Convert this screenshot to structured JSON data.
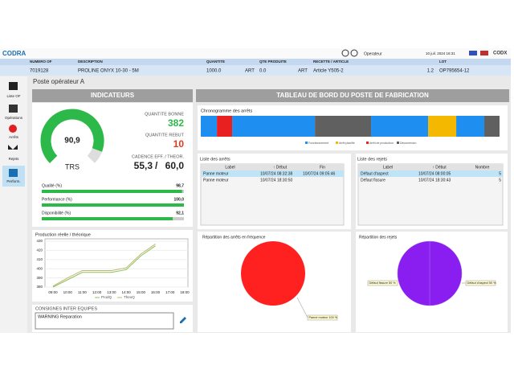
{
  "topbar": {
    "logo": "CODRA",
    "user": "Operateur",
    "datetime": "10 juil. 2024 16:31",
    "brand": "CODX"
  },
  "info": [
    {
      "label": "NUMERO OF",
      "value": "7019128"
    },
    {
      "label": "DESCRIPTION",
      "value": "PROLINE ONYX 10-30 - 5M"
    },
    {
      "label": "QUANTITE",
      "value": "1000.0",
      "unit": "ART"
    },
    {
      "label": "QTE PRODUITE",
      "value": "0.0",
      "unit": "ART"
    },
    {
      "label": "RECETTE / ARTICLE",
      "value": "Article Y505-2",
      "extra": "1.2"
    },
    {
      "label": "LOT",
      "value": "OP795654-12"
    }
  ],
  "nav": [
    "Liste OF",
    "Opérations",
    "Arrêts",
    "Rejets",
    "Perform."
  ],
  "page_title": "Poste opérateur A",
  "indicators": {
    "title": "INDICATEURS",
    "trs": {
      "label": "TRS",
      "value": 90.9,
      "value_label": "90,9",
      "max": 100,
      "color": "#2db84a"
    },
    "good": {
      "label": "QUANTITE BONNE",
      "value": 382,
      "color": "#2db84a"
    },
    "scrap": {
      "label": "QUANTITE REBUT",
      "value": 10,
      "color": "#e03a1e"
    },
    "rate": {
      "label": "CADENCE EFF. / THEOR.",
      "effective": 55.3,
      "effective_label": "55,3",
      "separator": "/",
      "theoretical": 60.0,
      "theoretical_label": "60,0"
    },
    "bars_xlim": [
      0,
      100
    ],
    "bars": [
      {
        "label": "Qualité (%)",
        "value": 98.7,
        "value_label": "98,7"
      },
      {
        "label": "Performance (%)",
        "value": 100.0,
        "value_label": "100,0"
      },
      {
        "label": "Disponibilité (%)",
        "value": 92.1,
        "value_label": "92,1"
      }
    ]
  },
  "chart_data": {
    "type": "line",
    "title": "Production réelle / théorique",
    "categories": [
      "09:00",
      "10:00",
      "11:00",
      "12:00",
      "13:00",
      "14:00",
      "15:00",
      "16:00",
      "17:00",
      "18:00"
    ],
    "series": [
      {
        "name": "ProdQ",
        "color": "#8fbf5a",
        "values": [
          380,
          388,
          396,
          396,
          396,
          399,
          414,
          425,
          null,
          null
        ]
      },
      {
        "name": "TheoQ",
        "color": "#bdb76b",
        "values": [
          381,
          390,
          398,
          398,
          398,
          401,
          416,
          427,
          null,
          null
        ]
      }
    ],
    "ylim": [
      380,
      430
    ],
    "yticks": [
      380,
      390,
      400,
      410,
      420,
      430
    ],
    "grid": true
  },
  "consignes": {
    "title": "CONSIGNES INTER EQUIPES",
    "text": "WARNING Reparation"
  },
  "dashboard": {
    "title": "TABLEAU DE BORD DU POSTE DE FABRICATION",
    "chrono": {
      "title": "Chronogramme des arrêts",
      "xlim": [
        0,
        100
      ],
      "legend": [
        {
          "name": "Fonctionnement",
          "color": "#1e8ff0"
        },
        {
          "name": "Arrêt planifié",
          "color": "#f5b800"
        },
        {
          "name": "Arrêt de production",
          "color": "#e82020"
        },
        {
          "name": "Déconnexion",
          "color": "#606060"
        }
      ],
      "segments": [
        {
          "state": 0,
          "start": 0,
          "end": 5.4
        },
        {
          "state": 2,
          "start": 5.4,
          "end": 10.5
        },
        {
          "state": 0,
          "start": 10.5,
          "end": 38.2
        },
        {
          "state": 3,
          "start": 38.2,
          "end": 57
        },
        {
          "state": 0,
          "start": 57,
          "end": 76.1
        },
        {
          "state": 1,
          "start": 76.1,
          "end": 85.5
        },
        {
          "state": 0,
          "start": 85.5,
          "end": 94.9
        },
        {
          "state": 3,
          "start": 94.9,
          "end": 100
        }
      ]
    },
    "stops": {
      "title": "Liste des arrêts",
      "columns": [
        "Label",
        "↑ Début",
        "Fin"
      ],
      "rows": [
        [
          "Panne moteur",
          "10/07/24 08:32:38",
          "10/07/24 09:05:46"
        ],
        [
          "Panne moteur",
          "10/07/24 18:30:50"
        ]
      ]
    },
    "rejects": {
      "title": "Liste des rejets",
      "columns": [
        "Label",
        "↑ Début",
        "Nombre"
      ],
      "rows": [
        [
          "Défaut d'aspect",
          "10/07/24 08:00:05",
          "5"
        ],
        [
          "Défaut fissure",
          "10/07/24 18:30:43",
          "5"
        ]
      ]
    },
    "stops_pie": {
      "title": "Répartition des arrêts en fréquence",
      "slices": [
        {
          "value": 100,
          "value_label": "Panne moteur 100 %",
          "color": "#ff2020"
        }
      ]
    },
    "rejects_pie": {
      "title": "Répartition des rejets",
      "slices": [
        {
          "value": 50,
          "value_label": "Défaut d'aspect 50 %",
          "color": "#8a1ef0"
        },
        {
          "value": 50,
          "value_label": "Défaut fissure 50 %",
          "color": "#8a1ef0"
        }
      ]
    }
  }
}
